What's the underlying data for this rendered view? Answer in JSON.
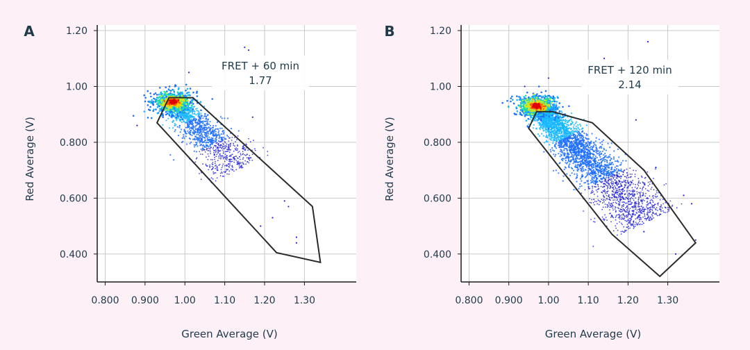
{
  "chart_data": [
    {
      "type": "scatter",
      "panel_label": "A",
      "xlabel": "Green Average (V)",
      "ylabel": "Red Average (V)",
      "xlim": [
        0.78,
        1.43
      ],
      "ylim": [
        0.3,
        1.22
      ],
      "x_ticks": [
        "0.800",
        "0.900",
        "1.00",
        "1.10",
        "1.20",
        "1.30"
      ],
      "x_tick_values": [
        0.8,
        0.9,
        1.0,
        1.1,
        1.2,
        1.3
      ],
      "y_ticks": [
        "1.20",
        "1.00",
        "0.800",
        "0.600",
        "0.400"
      ],
      "y_tick_values": [
        1.2,
        1.0,
        0.8,
        0.6,
        0.4
      ],
      "annotation": {
        "title": "FRET + 60 min",
        "value": "1.77"
      },
      "gate_polygon": [
        [
          0.93,
          0.87
        ],
        [
          0.96,
          0.96
        ],
        [
          1.02,
          0.96
        ],
        [
          1.32,
          0.57
        ],
        [
          1.34,
          0.37
        ],
        [
          1.23,
          0.405
        ]
      ],
      "population": {
        "hotspot": [
          0.97,
          0.945
        ],
        "tail_end": [
          1.12,
          0.73
        ],
        "tail_sd": 0.028,
        "point_count": 1500
      },
      "outliers": [
        [
          1.15,
          1.14
        ],
        [
          1.16,
          1.13
        ],
        [
          1.26,
          0.57
        ],
        [
          1.22,
          0.53
        ],
        [
          1.28,
          0.46
        ],
        [
          1.28,
          0.44
        ],
        [
          1.19,
          0.5
        ],
        [
          0.88,
          0.86
        ],
        [
          0.93,
          0.97
        ],
        [
          1.01,
          1.05
        ],
        [
          1.17,
          0.89
        ],
        [
          1.25,
          0.59
        ]
      ],
      "density_colors": [
        "#2222dd",
        "#1f6fff",
        "#18b8ff",
        "#22e0a0",
        "#b8f030",
        "#ffd000",
        "#ff5a00",
        "#dd0000"
      ]
    },
    {
      "type": "scatter",
      "panel_label": "B",
      "xlabel": "Green Average (V)",
      "ylabel": "Red Average (V)",
      "xlim": [
        0.78,
        1.43
      ],
      "ylim": [
        0.3,
        1.22
      ],
      "x_ticks": [
        "0.800",
        "0.900",
        "1.00",
        "1.10",
        "1.20",
        "1.30"
      ],
      "x_tick_values": [
        0.8,
        0.9,
        1.0,
        1.1,
        1.2,
        1.3
      ],
      "y_ticks": [
        "1.20",
        "1.00",
        "0.800",
        "0.600",
        "0.400"
      ],
      "y_tick_values": [
        1.2,
        1.0,
        0.8,
        0.6,
        0.4
      ],
      "annotation": {
        "title": "FRET + 120 min",
        "value": "2.14"
      },
      "gate_polygon": [
        [
          0.95,
          0.85
        ],
        [
          0.97,
          0.91
        ],
        [
          1.01,
          0.91
        ],
        [
          1.11,
          0.87
        ],
        [
          1.24,
          0.7
        ],
        [
          1.37,
          0.44
        ],
        [
          1.28,
          0.32
        ],
        [
          1.16,
          0.47
        ]
      ],
      "population": {
        "hotspot": [
          0.97,
          0.93
        ],
        "tail_end": [
          1.22,
          0.56
        ],
        "tail_sd": 0.032,
        "point_count": 3800
      },
      "outliers": [
        [
          1.25,
          1.16
        ],
        [
          1.14,
          1.1
        ],
        [
          1.27,
          0.71
        ],
        [
          1.34,
          0.61
        ],
        [
          1.37,
          0.45
        ],
        [
          1.36,
          0.58
        ],
        [
          1.24,
          0.48
        ],
        [
          1.32,
          0.4
        ],
        [
          0.94,
          1.0
        ],
        [
          1.0,
          1.03
        ],
        [
          1.09,
          1.06
        ],
        [
          1.22,
          0.88
        ]
      ],
      "density_colors": [
        "#2222dd",
        "#1f6fff",
        "#18b8ff",
        "#22e0a0",
        "#b8f030",
        "#ffd000",
        "#ff5a00",
        "#dd0000"
      ]
    }
  ]
}
